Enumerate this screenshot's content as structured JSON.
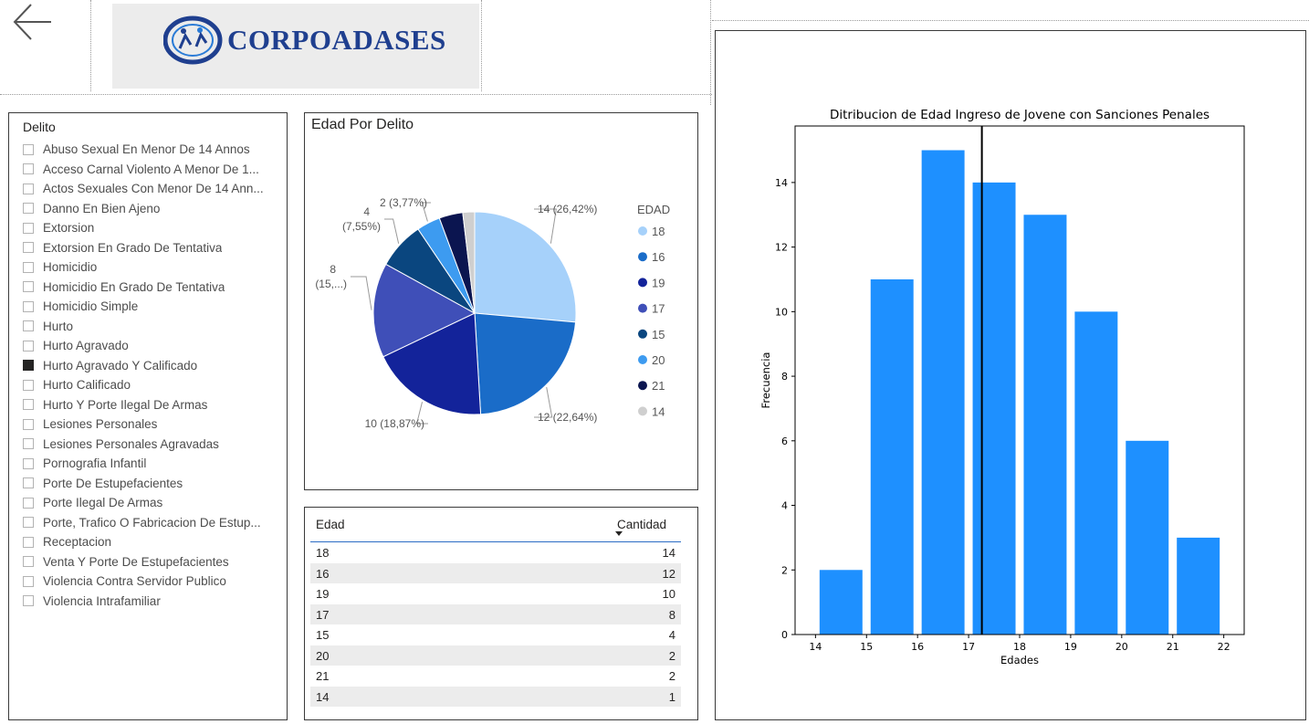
{
  "header": {
    "back_icon": "arrow-left-icon",
    "logo_text": "CORPOADASES"
  },
  "slicer": {
    "title": "Delito",
    "items": [
      {
        "label": "Abuso Sexual En Menor De 14 Annos",
        "checked": false
      },
      {
        "label": "Acceso Carnal Violento A Menor De 1...",
        "checked": false
      },
      {
        "label": "Actos Sexuales Con Menor De 14 Ann...",
        "checked": false
      },
      {
        "label": "Danno En Bien Ajeno",
        "checked": false
      },
      {
        "label": "Extorsion",
        "checked": false
      },
      {
        "label": "Extorsion En Grado De Tentativa",
        "checked": false
      },
      {
        "label": "Homicidio",
        "checked": false
      },
      {
        "label": "Homicidio En Grado De Tentativa",
        "checked": false
      },
      {
        "label": "Homicidio Simple",
        "checked": false
      },
      {
        "label": "Hurto",
        "checked": false
      },
      {
        "label": "Hurto Agravado",
        "checked": false
      },
      {
        "label": "Hurto Agravado Y Calificado",
        "checked": true
      },
      {
        "label": "Hurto Calificado",
        "checked": false
      },
      {
        "label": "Hurto Y Porte Ilegal De Armas",
        "checked": false
      },
      {
        "label": "Lesiones Personales",
        "checked": false
      },
      {
        "label": "Lesiones Personales Agravadas",
        "checked": false
      },
      {
        "label": "Pornografia Infantil",
        "checked": false
      },
      {
        "label": "Porte De Estupefacientes",
        "checked": false
      },
      {
        "label": "Porte Ilegal De Armas",
        "checked": false
      },
      {
        "label": "Porte, Trafico O Fabricacion De Estup...",
        "checked": false
      },
      {
        "label": "Receptacion",
        "checked": false
      },
      {
        "label": "Venta Y Porte De Estupefacientes",
        "checked": false
      },
      {
        "label": "Violencia Contra Servidor Publico",
        "checked": false
      },
      {
        "label": "Violencia Intrafamiliar",
        "checked": false
      }
    ]
  },
  "pie": {
    "title": "Edad Por Delito",
    "legend_title": "EDAD",
    "slices": [
      {
        "label": "18",
        "value": 14,
        "color": "#a6d1fa",
        "data_label": "14 (26,42%)"
      },
      {
        "label": "16",
        "value": 12,
        "color": "#1a6cc8",
        "data_label": "12 (22,64%)"
      },
      {
        "label": "19",
        "value": 10,
        "color": "#13239a",
        "data_label": "10 (18,87%)"
      },
      {
        "label": "17",
        "value": 8,
        "color": "#3f4fb8",
        "data_label_lines": [
          "8",
          "(15,...)"
        ]
      },
      {
        "label": "15",
        "value": 4,
        "color": "#0a467f",
        "data_label_lines": [
          "4",
          "(7,55%)"
        ]
      },
      {
        "label": "20",
        "value": 2,
        "color": "#3d9bf0",
        "data_label": "2 (3,77%)"
      },
      {
        "label": "21",
        "value": 2,
        "color": "#0b1550"
      },
      {
        "label": "14",
        "value": 1,
        "color": "#cfcfcf"
      }
    ]
  },
  "table": {
    "col1": "Edad",
    "col2": "Cantidad",
    "rows": [
      {
        "edad": "18",
        "cantidad": "14"
      },
      {
        "edad": "16",
        "cantidad": "12"
      },
      {
        "edad": "19",
        "cantidad": "10"
      },
      {
        "edad": "17",
        "cantidad": "8"
      },
      {
        "edad": "15",
        "cantidad": "4"
      },
      {
        "edad": "20",
        "cantidad": "2"
      },
      {
        "edad": "21",
        "cantidad": "2"
      },
      {
        "edad": "14",
        "cantidad": "1"
      }
    ]
  },
  "chart_data": {
    "type": "bar",
    "title": "Ditribucion de Edad Ingreso de Jovene con Sanciones Penales",
    "xlabel": "Edades",
    "ylabel": "Frecuencia",
    "bars": [
      {
        "x_start": 14.0,
        "x_end": 15.0,
        "value": 2
      },
      {
        "x_start": 15.0,
        "x_end": 16.0,
        "value": 11
      },
      {
        "x_start": 16.0,
        "x_end": 17.0,
        "value": 15
      },
      {
        "x_start": 17.0,
        "x_end": 18.0,
        "value": 14
      },
      {
        "x_start": 18.0,
        "x_end": 19.0,
        "value": 13
      },
      {
        "x_start": 19.0,
        "x_end": 20.0,
        "value": 10
      },
      {
        "x_start": 20.0,
        "x_end": 21.0,
        "value": 6
      },
      {
        "x_start": 21.0,
        "x_end": 22.0,
        "value": 3
      }
    ],
    "vline_x": 17.26,
    "xlim": [
      13.6,
      22.4
    ],
    "ylim": [
      0,
      15.75
    ],
    "xticks": [
      14,
      15,
      16,
      17,
      18,
      19,
      20,
      21,
      22
    ],
    "yticks": [
      0,
      2,
      4,
      6,
      8,
      10,
      12,
      14
    ],
    "bar_color": "#1e90ff",
    "vline_color": "#000000",
    "grid": false
  }
}
